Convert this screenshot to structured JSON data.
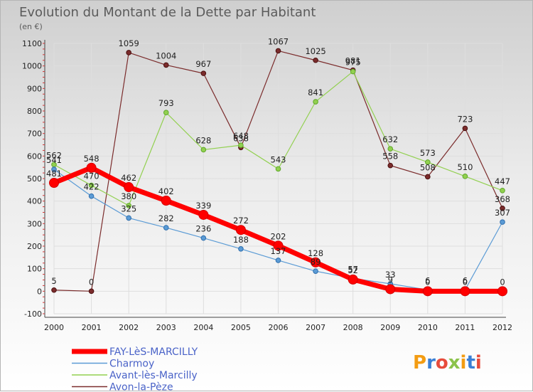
{
  "chart_data": {
    "type": "line",
    "title": "Evolution du Montant de la Dette par Habitant",
    "subtitle": "(en €)",
    "x": [
      "2000",
      "2001",
      "2002",
      "2003",
      "2004",
      "2005",
      "2006",
      "2007",
      "2008",
      "2009",
      "2010",
      "2011",
      "2012"
    ],
    "yticks": [
      -100,
      0,
      100,
      200,
      300,
      400,
      500,
      600,
      700,
      800,
      900,
      1000,
      1100
    ],
    "ylim": [
      -100,
      1100
    ],
    "grid": true,
    "legend_position": "bottom-left",
    "series": [
      {
        "name": "FAY-LèS-MARCILLY",
        "color": "#ff0000",
        "values": [
          481,
          548,
          462,
          402,
          339,
          272,
          202,
          128,
          52,
          9,
          0,
          0,
          0
        ],
        "labels": [
          "481",
          "548",
          "462",
          "402",
          "339",
          "272",
          "202",
          "128",
          "52",
          "9",
          "0",
          "0",
          "0"
        ]
      },
      {
        "name": "Charmoy",
        "color": "#5b9bd5",
        "values": [
          541,
          422,
          325,
          282,
          236,
          188,
          137,
          89,
          57,
          33,
          6,
          6,
          307
        ],
        "labels": [
          "541",
          "422",
          "325",
          "282",
          "236",
          "188",
          "137",
          "89",
          "57",
          "33",
          "6",
          "6",
          "307"
        ]
      },
      {
        "name": "Avant-lès-Marcilly",
        "color": "#92d050",
        "values": [
          562,
          470,
          380,
          793,
          628,
          648,
          543,
          841,
          975,
          632,
          573,
          510,
          447
        ],
        "labels": [
          "562",
          "470",
          "380",
          "793",
          "628",
          "648",
          "543",
          "841",
          "975",
          "632",
          "573",
          "510",
          "447"
        ]
      },
      {
        "name": "Avon-la-Pèze",
        "color": "#7b2c2c",
        "values": [
          5,
          0,
          1059,
          1004,
          967,
          638,
          1067,
          1025,
          981,
          558,
          508,
          723,
          368
        ],
        "labels": [
          "5",
          "0",
          "1059",
          "1004",
          "967",
          "638",
          "1067",
          "1025",
          "981",
          "558",
          "508",
          "723",
          "368"
        ]
      }
    ]
  },
  "logo": {
    "text": "Proxiti"
  }
}
